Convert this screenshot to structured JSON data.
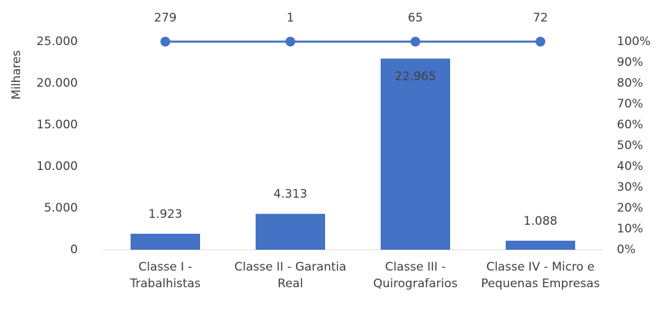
{
  "chart_data": {
    "type": "bar",
    "y_label": "Milhares",
    "categories": [
      "Classe I - Trabalhistas",
      "Classe II - Garantia Real",
      "Classe III - Quirografarios",
      "Classe IV - Micro e Pequenas Empresas"
    ],
    "series": [
      {
        "type": "bar",
        "color": "#4472c4",
        "values": [
          1923,
          4313,
          22965,
          1088
        ],
        "value_labels": [
          "1.923",
          "4.313",
          "22.965",
          "1.088"
        ]
      },
      {
        "type": "line",
        "axis": "y2",
        "color": "#4472c4",
        "values": [
          100,
          100,
          100,
          100
        ]
      }
    ],
    "annotations": [
      "279",
      "1",
      "65",
      "72"
    ],
    "ylim": [
      0,
      25000
    ],
    "yticks": [
      {
        "value": 0,
        "label": "0"
      },
      {
        "value": 5000,
        "label": "5.000"
      },
      {
        "value": 10000,
        "label": "10.000"
      },
      {
        "value": 15000,
        "label": "15.000"
      },
      {
        "value": 20000,
        "label": "20.000"
      },
      {
        "value": 25000,
        "label": "25.000"
      }
    ],
    "y2lim": [
      0,
      100
    ],
    "y2ticks": [
      {
        "value": 0,
        "label": "0%"
      },
      {
        "value": 10,
        "label": "10%"
      },
      {
        "value": 20,
        "label": "20%"
      },
      {
        "value": 30,
        "label": "30%"
      },
      {
        "value": 40,
        "label": "40%"
      },
      {
        "value": 50,
        "label": "50%"
      },
      {
        "value": 60,
        "label": "60%"
      },
      {
        "value": 70,
        "label": "70%"
      },
      {
        "value": 80,
        "label": "80%"
      },
      {
        "value": 90,
        "label": "90%"
      },
      {
        "value": 100,
        "label": "100%"
      }
    ],
    "grid": false
  }
}
